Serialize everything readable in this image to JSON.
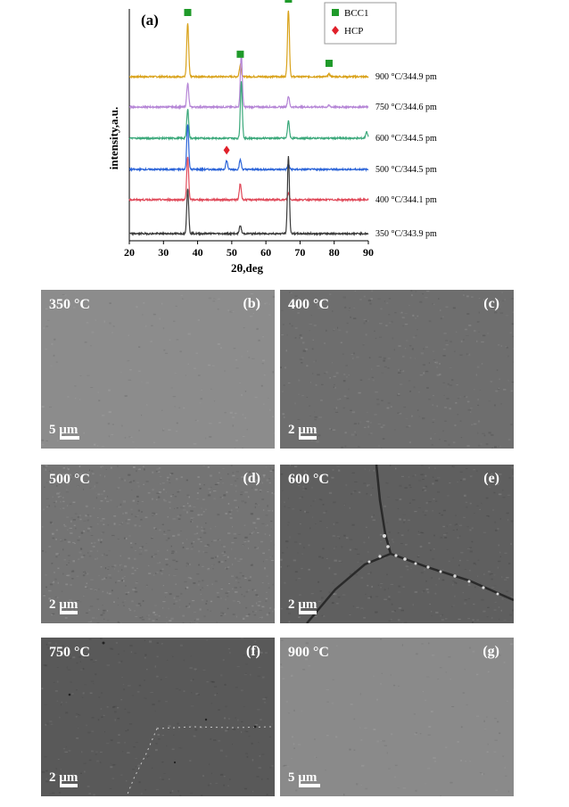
{
  "chart_data": {
    "type": "line",
    "panel_label": "(a)",
    "xlabel": "2θ,deg",
    "ylabel": "intensity,a.u.",
    "xlim": [
      20,
      90
    ],
    "x_ticks": [
      "20",
      "30",
      "40",
      "50",
      "60",
      "70",
      "80",
      "90"
    ],
    "legend": [
      {
        "name": "BCC1",
        "color": "#1f9a2a",
        "marker": "square"
      },
      {
        "name": "HCP",
        "color": "#e0202a",
        "marker": "diamond"
      }
    ],
    "legend_position": "top-right",
    "series": [
      {
        "name": "900 °C/344.9 pm",
        "color": "#d9a21a",
        "peaks": [
          {
            "x": 37.1,
            "h": 1.0
          },
          {
            "x": 52.5,
            "h": 0.22
          },
          {
            "x": 66.6,
            "h": 1.25
          },
          {
            "x": 78.5,
            "h": 0.05
          }
        ]
      },
      {
        "name": "750 °C/344.6 pm",
        "color": "#b585d6",
        "peaks": [
          {
            "x": 37.1,
            "h": 0.45
          },
          {
            "x": 52.8,
            "h": 0.98
          },
          {
            "x": 66.6,
            "h": 0.2
          },
          {
            "x": 78.5,
            "h": 0.03
          }
        ]
      },
      {
        "name": "600 °C/344.5 pm",
        "color": "#3aa87a",
        "peaks": [
          {
            "x": 37.1,
            "h": 0.55
          },
          {
            "x": 52.8,
            "h": 1.05
          },
          {
            "x": 66.6,
            "h": 0.32
          },
          {
            "x": 89.5,
            "h": 0.12
          }
        ]
      },
      {
        "name": "500 °C/344.5 pm",
        "color": "#2a63d8",
        "peaks": [
          {
            "x": 37.1,
            "h": 0.85
          },
          {
            "x": 48.5,
            "h": 0.16
          },
          {
            "x": 52.5,
            "h": 0.18
          },
          {
            "x": 66.6,
            "h": 0.1
          }
        ]
      },
      {
        "name": "400 °C/344.1 pm",
        "color": "#e04a5a",
        "peaks": [
          {
            "x": 37.1,
            "h": 0.8
          },
          {
            "x": 52.5,
            "h": 0.3
          },
          {
            "x": 66.6,
            "h": 0.12
          }
        ]
      },
      {
        "name": "350 °C/343.9 pm",
        "color": "#3a3a3a",
        "peaks": [
          {
            "x": 37.1,
            "h": 0.85
          },
          {
            "x": 52.5,
            "h": 0.15
          },
          {
            "x": 66.6,
            "h": 1.45
          }
        ]
      }
    ],
    "markers": [
      {
        "phase": "BCC1",
        "x": 37.1
      },
      {
        "phase": "BCC1",
        "x": 52.5
      },
      {
        "phase": "BCC1",
        "x": 66.6
      },
      {
        "phase": "BCC1",
        "x": 78.5
      },
      {
        "phase": "HCP",
        "x": 48.5
      }
    ]
  },
  "panels": [
    {
      "id": "b",
      "label": "(b)",
      "temp": "350 °C",
      "scale": "5 µm",
      "bg": "#8c8c8c",
      "noise": 0.2
    },
    {
      "id": "c",
      "label": "(c)",
      "temp": "400 °C",
      "scale": "2 µm",
      "bg": "#6e6e6e",
      "noise": 0.45
    },
    {
      "id": "d",
      "label": "(d)",
      "temp": "500 °C",
      "scale": "2 µm",
      "bg": "#747474",
      "noise": 0.9
    },
    {
      "id": "e",
      "label": "(e)",
      "temp": "600 °C",
      "scale": "2 µm",
      "bg": "#5f5f5f",
      "noise": 0.5
    },
    {
      "id": "f",
      "label": "(f)",
      "temp": "750 °C",
      "scale": "2 µm",
      "bg": "#595959",
      "noise": 0.35
    },
    {
      "id": "g",
      "label": "(g)",
      "temp": "900 °C",
      "scale": "5 µm",
      "bg": "#8a8a8a",
      "noise": 0.15
    }
  ]
}
